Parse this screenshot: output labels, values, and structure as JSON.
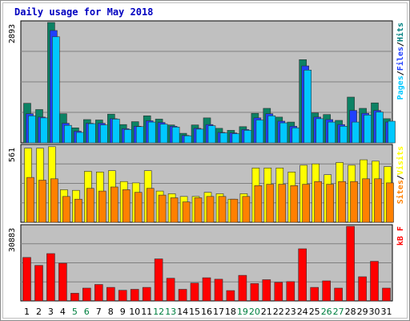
{
  "chart_data": {
    "type": "bar",
    "title": "Daily usage for May 2018",
    "categories": [
      "1",
      "2",
      "3",
      "4",
      "5",
      "6",
      "7",
      "8",
      "9",
      "10",
      "11",
      "12",
      "13",
      "14",
      "15",
      "16",
      "17",
      "18",
      "19",
      "20",
      "21",
      "22",
      "23",
      "24",
      "25",
      "26",
      "27",
      "28",
      "29",
      "30",
      "31"
    ],
    "weekend_days": [
      "5",
      "6",
      "12",
      "13",
      "19",
      "20",
      "26",
      "27"
    ],
    "panels": [
      {
        "id": "pages-files-hits",
        "ymax": 2893,
        "ymax_label": "2893",
        "legend": [
          "Pages",
          "/",
          "Files",
          "/",
          "Hits"
        ],
        "legend_colors": [
          "#00c8ff",
          "#000000",
          "#2040ff",
          "#000000",
          "#008080"
        ],
        "series": [
          {
            "name": "Hits",
            "color": "#0c8264",
            "values": [
              950,
              800,
              2893,
              700,
              360,
              560,
              550,
              690,
              440,
              510,
              650,
              570,
              430,
              230,
              430,
              600,
              350,
              300,
              390,
              710,
              830,
              620,
              500,
              2000,
              720,
              680,
              540,
              1100,
              830,
              960,
              580
            ]
          },
          {
            "name": "Files",
            "color": "#2040ff",
            "values": [
              700,
              620,
              2700,
              470,
              280,
              470,
              470,
              580,
              340,
              400,
              530,
              490,
              400,
              180,
              350,
              440,
              250,
              240,
              320,
              600,
              700,
              520,
              400,
              1850,
              620,
              560,
              440,
              780,
              710,
              780,
              500
            ]
          },
          {
            "name": "Pages",
            "color": "#00c8ff",
            "values": [
              650,
              600,
              2550,
              420,
              250,
              460,
              430,
              570,
              320,
              390,
              500,
              450,
              380,
              170,
              330,
              410,
              240,
              220,
              300,
              550,
              650,
              480,
              360,
              1750,
              580,
              500,
              400,
              500,
              670,
              740,
              520
            ]
          }
        ]
      },
      {
        "id": "sites-visits",
        "ymax": 561,
        "ymax_label": "561",
        "legend": [
          "Sites",
          "/",
          "Visits"
        ],
        "legend_colors": [
          "#ff8000",
          "#000000",
          "#ffff00"
        ],
        "series": [
          {
            "name": "Visits",
            "color": "#ffff00",
            "values": [
              545,
              545,
              556,
              240,
              235,
              375,
              370,
              380,
              300,
              290,
              380,
              230,
              210,
              190,
              190,
              220,
              210,
              170,
              210,
              400,
              400,
              400,
              370,
              420,
              430,
              350,
              440,
              420,
              460,
              450,
              410
            ]
          },
          {
            "name": "Sites",
            "color": "#ff8000",
            "values": [
              330,
              310,
              320,
              190,
              170,
              250,
              230,
              260,
              240,
              220,
              250,
              200,
              180,
              150,
              180,
              190,
              190,
              170,
              190,
              270,
              280,
              280,
              270,
              280,
              300,
              280,
              300,
              300,
              320,
              320,
              290
            ]
          }
        ]
      },
      {
        "id": "kbf",
        "ymax": 30883,
        "ymax_label": "30883",
        "legend": [
          "kB F"
        ],
        "legend_colors": [
          "#ff0000"
        ],
        "series": [
          {
            "name": "kB F",
            "color": "#ff0000",
            "values": [
              18000,
              14700,
              19600,
              15600,
              3200,
              5300,
              6800,
              5600,
              4400,
              4800,
              5600,
              17400,
              9400,
              4800,
              7400,
              9600,
              9000,
              4300,
              10600,
              7200,
              8800,
              7700,
              8000,
              21600,
              5600,
              8300,
              5300,
              30883,
              10000,
              16400,
              5300
            ]
          }
        ]
      }
    ]
  }
}
